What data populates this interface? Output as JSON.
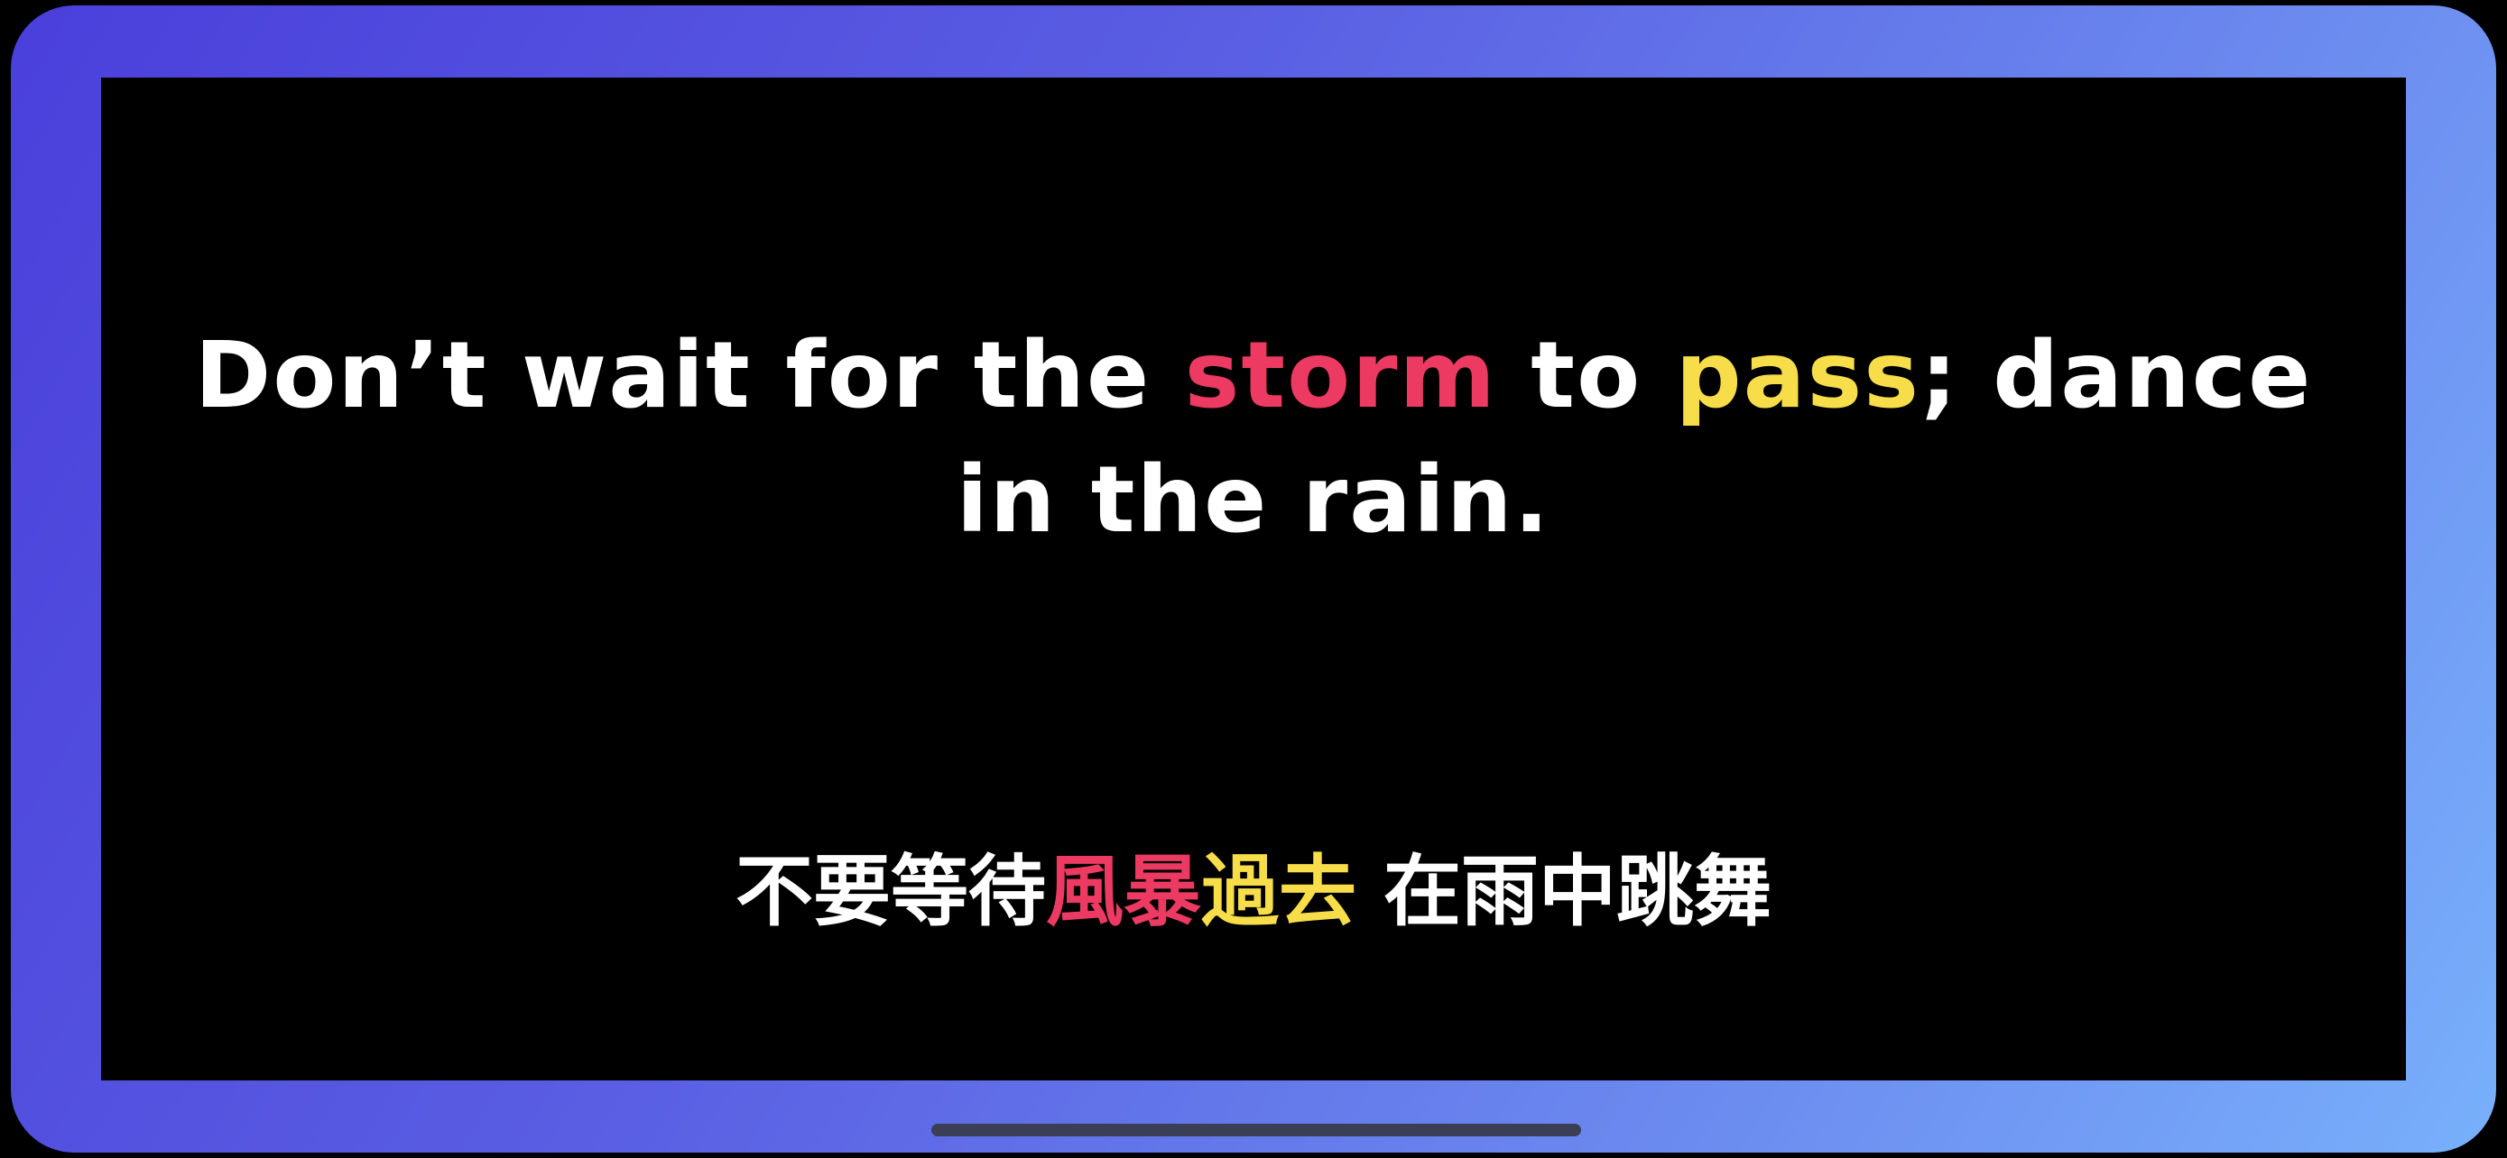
{
  "quote_english": {
    "line1_before": "Don’t wait for the ",
    "highlight_red": "storm",
    "middle": " to ",
    "highlight_yellow": "pass",
    "line1_after": "; dance",
    "line2": "in the rain."
  },
  "quote_chinese": {
    "before": "不要等待",
    "highlight_red": "風暴",
    "highlight_yellow": "過去",
    "after": " 在雨中跳舞"
  },
  "colors": {
    "highlight_red": "#ec3a62",
    "highlight_yellow": "#f7dd4a",
    "text": "#ffffff",
    "screen_background": "#000000",
    "frame_gradient_start": "#4a3fdb",
    "frame_gradient_end": "#78b0fb"
  }
}
